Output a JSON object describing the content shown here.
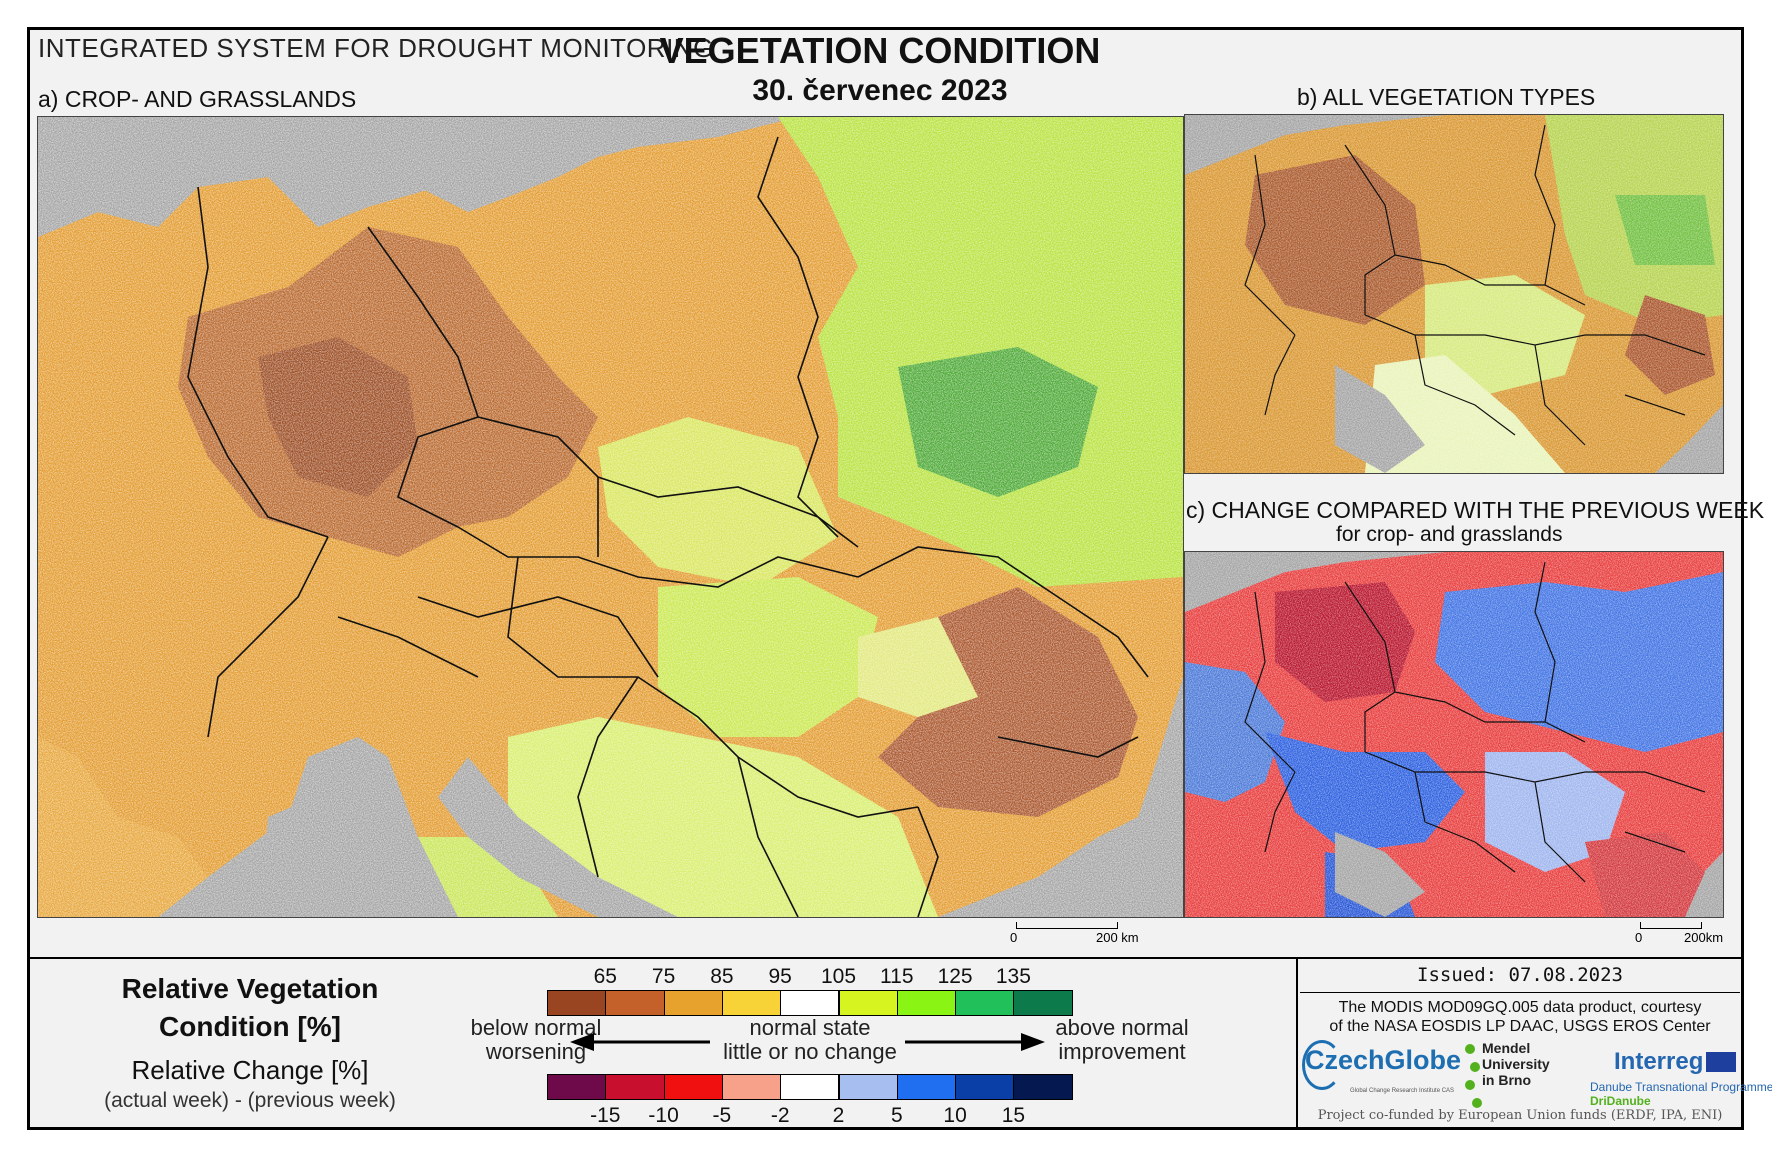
{
  "header": {
    "system_title": "INTEGRATED SYSTEM FOR DROUGHT MONITORING",
    "title": "VEGETATION CONDITION",
    "date": "30. červenec 2023"
  },
  "panels": {
    "a_label": "a) CROP- AND GRASSLANDS",
    "b_label": "b) ALL VEGETATION TYPES",
    "c_label": "c) CHANGE COMPARED WITH THE PREVIOUS WEEK",
    "c_sublabel": "for crop- and grasslands"
  },
  "scalebar": {
    "a_start": "0",
    "a_end": "200 km",
    "c_start": "0",
    "c_end": "200km"
  },
  "legend": {
    "rvc_title_line1": "Relative Vegetation",
    "rvc_title_line2": "Condition [%]",
    "rc_title": "Relative Change [%]",
    "rc_sub": "(actual week) - (previous week)",
    "rvc_ticks": [
      "65",
      "75",
      "85",
      "95",
      "105",
      "115",
      "125",
      "135"
    ],
    "rvc_colors": [
      "#9a4522",
      "#c4612a",
      "#e6a22c",
      "#f8d338",
      "#ffffff",
      "#d6f520",
      "#8af514",
      "#22c05a",
      "#0d7a4b"
    ],
    "rc_ticks": [
      "-15",
      "-10",
      "-5",
      "-2",
      "2",
      "5",
      "10",
      "15"
    ],
    "rc_colors": [
      "#6e0a4a",
      "#c8102e",
      "#f01010",
      "#f7a08a",
      "#ffffff",
      "#a6bff0",
      "#1f6ff0",
      "#0b3fa8",
      "#061850"
    ],
    "left_desc_1": "below normal",
    "left_desc_2": "worsening",
    "center_desc_1": "normal state",
    "center_desc_2": "little or no change",
    "right_desc_1": "above normal",
    "right_desc_2": "improvement"
  },
  "credits": {
    "issued": "Issued: 07.08.2023",
    "line1": "The MODIS MOD09GQ.005 data product, courtesy",
    "line2": "of the NASA EOSDIS LP DAAC, USGS EROS Center",
    "czechglobe": "CzechGlobe",
    "czechglobe_sub": "Global Change Research Institute CAS",
    "mendel_1": "Mendel",
    "mendel_2": "University",
    "mendel_3": "in Brno",
    "interreg": "Interreg",
    "interreg_sub": "Danube Transnational Programme",
    "interreg_sub2": "DriDanube",
    "funded": "Project co-funded by European Union funds (ERDF, IPA, ENI)"
  }
}
